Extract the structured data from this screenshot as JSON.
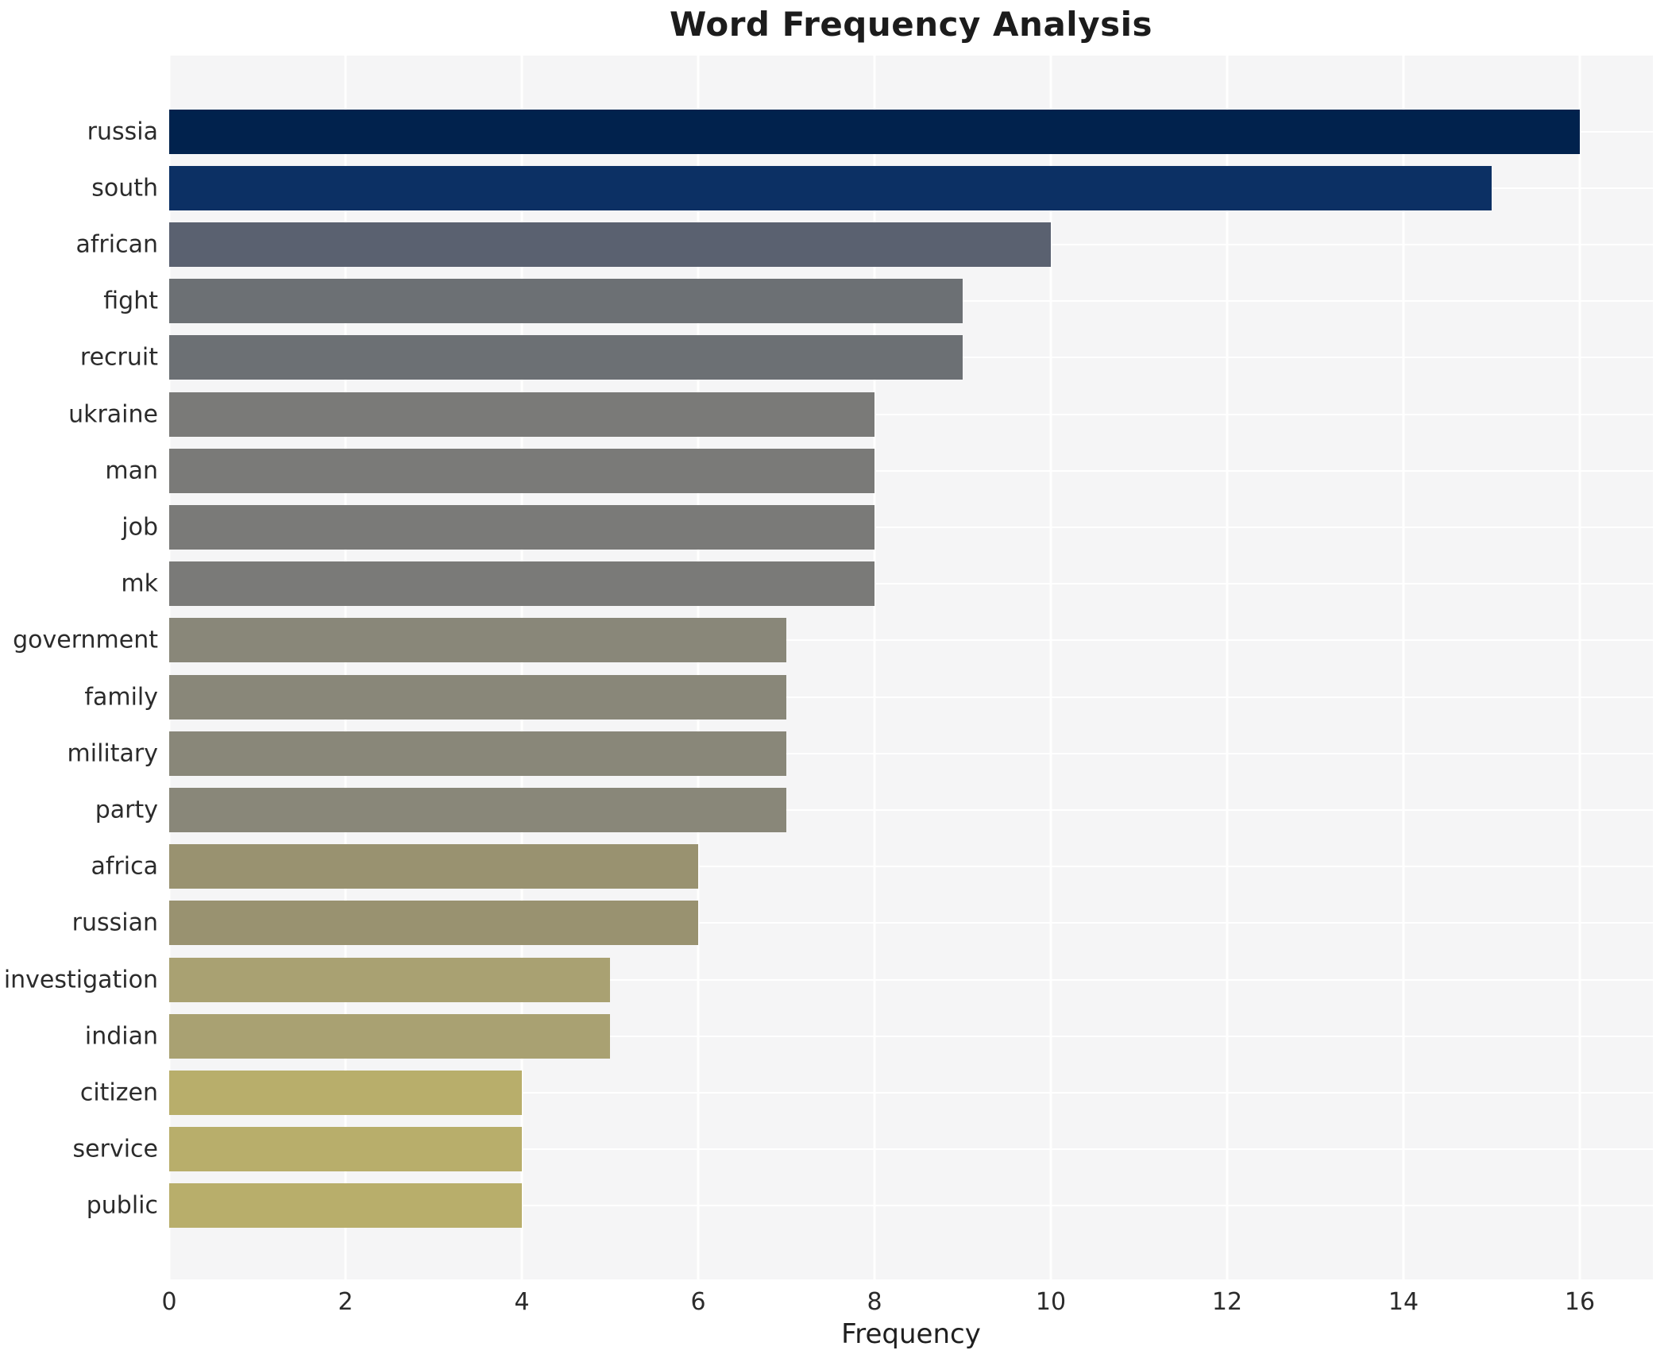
{
  "chart_data": {
    "type": "bar",
    "orientation": "horizontal",
    "title": "Word Frequency Analysis",
    "xlabel": "Frequency",
    "ylabel": "",
    "legend_position": "none",
    "grid": true,
    "xlim": [
      0,
      16.83
    ],
    "xticks": [
      0,
      2,
      4,
      6,
      8,
      10,
      12,
      14,
      16
    ],
    "categories": [
      "russia",
      "south",
      "african",
      "fight",
      "recruit",
      "ukraine",
      "man",
      "job",
      "mk",
      "government",
      "family",
      "military",
      "party",
      "africa",
      "russian",
      "investigation",
      "indian",
      "citizen",
      "service",
      "public"
    ],
    "values": [
      16,
      15,
      10,
      9,
      9,
      8,
      8,
      8,
      8,
      7,
      7,
      7,
      7,
      6,
      6,
      5,
      5,
      4,
      4,
      4
    ],
    "bar_colors": [
      "#01224d",
      "#0c3064",
      "#5a6170",
      "#6c7074",
      "#6c7074",
      "#7a7a78",
      "#7a7a78",
      "#7a7a78",
      "#7a7a78",
      "#898779",
      "#898779",
      "#898779",
      "#898779",
      "#999270",
      "#999270",
      "#a9a172",
      "#a9a172",
      "#b8ae6b",
      "#b8ae6b",
      "#b8ae6b"
    ]
  },
  "style": {
    "plot_background": "#f5f5f6",
    "grid_color": "#ffffff",
    "title_color": "#1c1c1c",
    "label_color": "#2b2b2b"
  }
}
